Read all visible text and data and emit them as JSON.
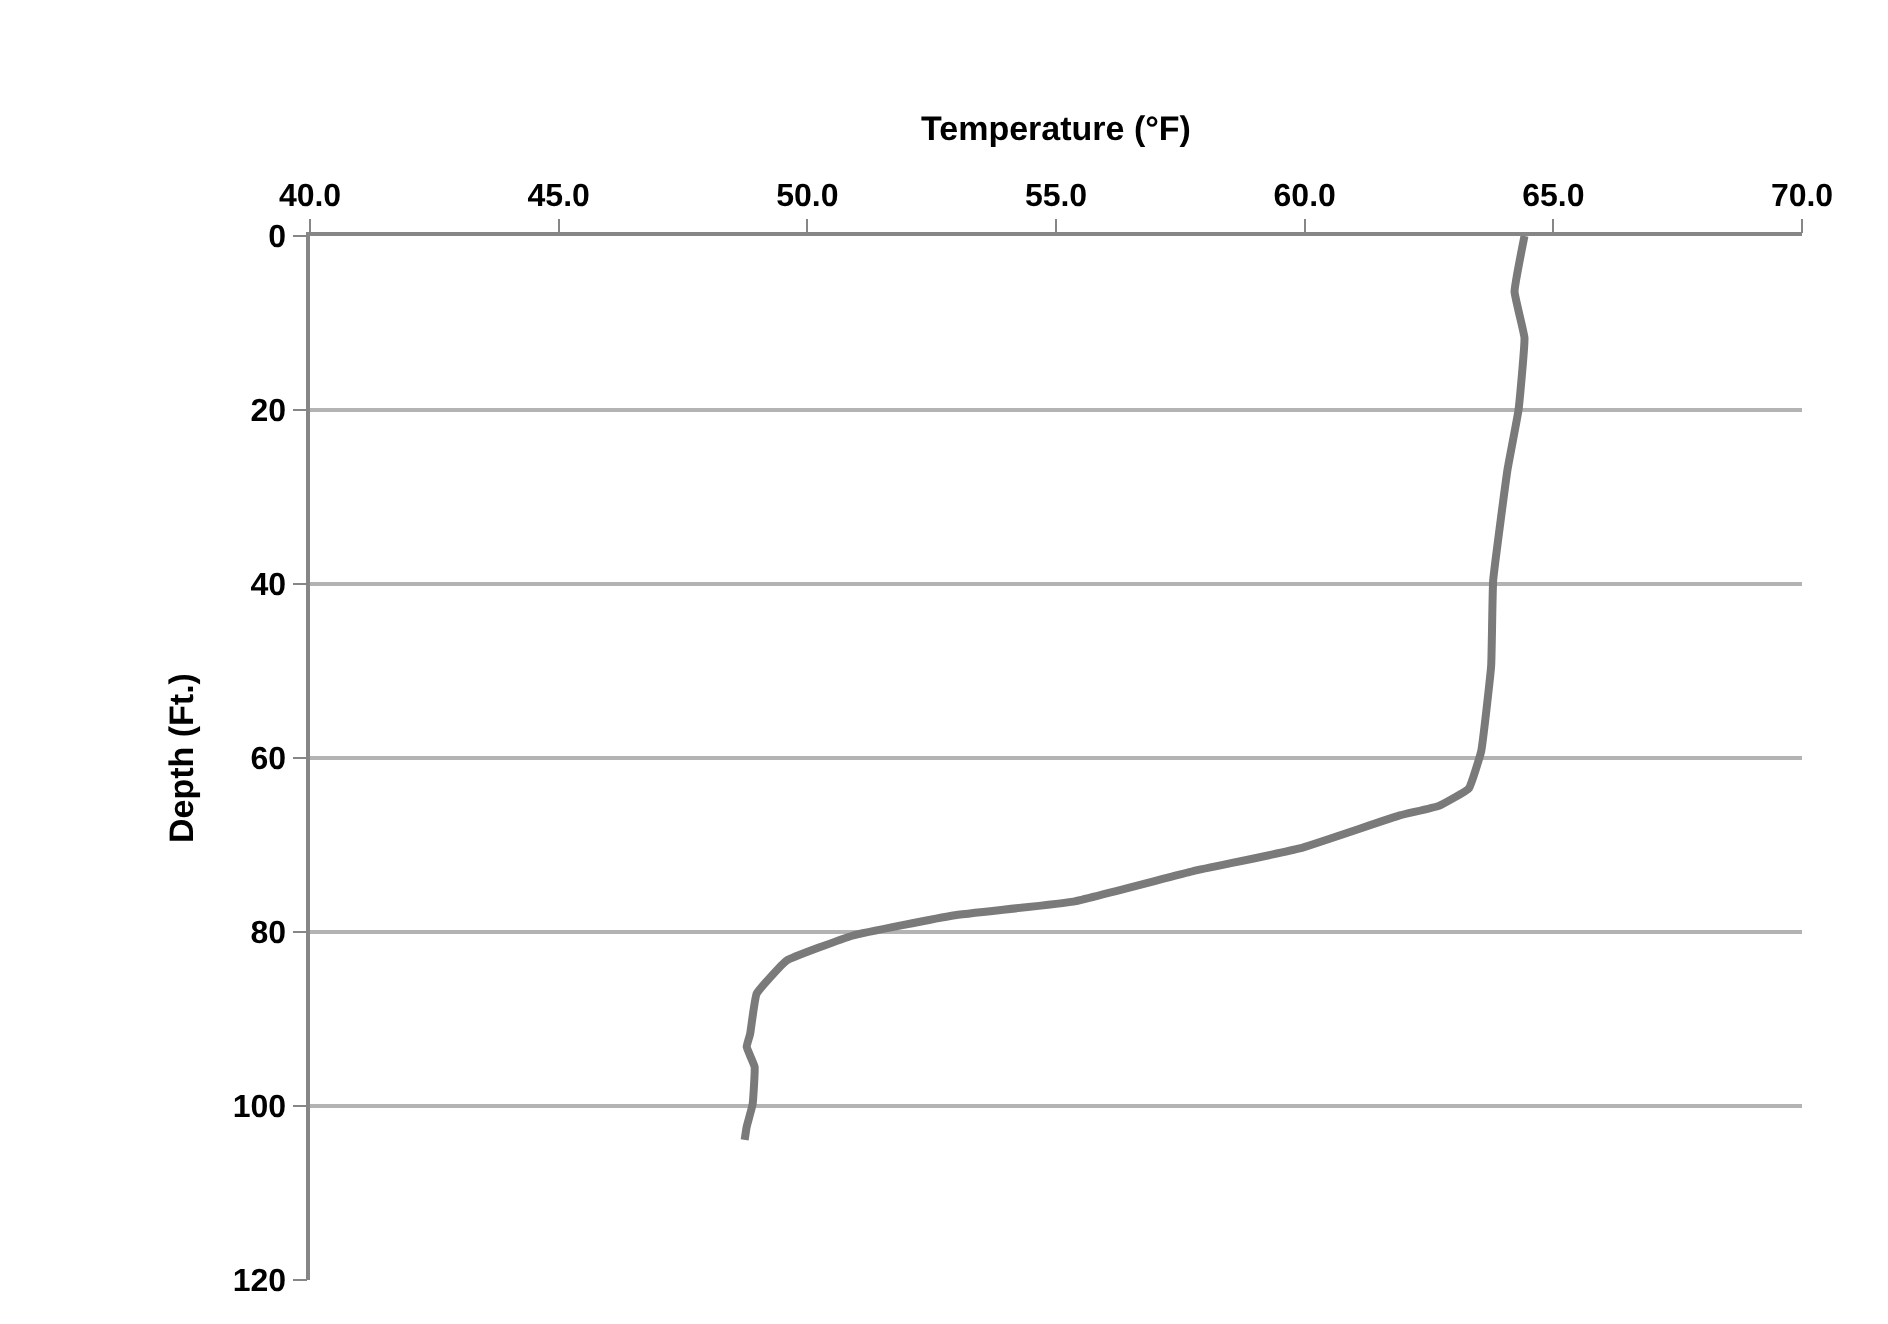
{
  "chart_data": {
    "type": "line",
    "xlabel": "Temperature (°F)",
    "ylabel": "Depth (Ft.)",
    "series": [
      {
        "color": "#7a7a7a",
        "x": [
          64.42,
          64.22,
          64.42,
          64.3,
          64.08,
          63.79,
          63.75,
          63.55,
          63.3,
          62.7,
          61.91,
          59.9,
          57.76,
          55.35,
          52.93,
          50.92,
          49.58,
          48.98,
          48.85,
          48.78,
          48.94,
          48.9,
          48.78,
          48.74
        ],
        "values": [
          0,
          6.4,
          11.7,
          20,
          26.8,
          39.6,
          49.4,
          59.2,
          63.5,
          65.5,
          66.6,
          70.4,
          73.0,
          76.5,
          78.1,
          80.4,
          83.3,
          87.1,
          91.7,
          93.2,
          95.5,
          99.8,
          102.4,
          103.9
        ]
      }
    ],
    "xlim": [
      40,
      70
    ],
    "xticks": [
      {
        "value": 40,
        "label": "40.0"
      },
      {
        "value": 45,
        "label": "45.0"
      },
      {
        "value": 50,
        "label": "50.0"
      },
      {
        "value": 55,
        "label": "55.0"
      },
      {
        "value": 60,
        "label": "60.0"
      },
      {
        "value": 65,
        "label": "65.0"
      },
      {
        "value": 70,
        "label": "70.0"
      }
    ],
    "ylim": [
      120,
      0
    ],
    "yticks": [
      0,
      20,
      40,
      60,
      80,
      100,
      120
    ],
    "grid": "y",
    "marker": "none",
    "line_style": "solid"
  }
}
